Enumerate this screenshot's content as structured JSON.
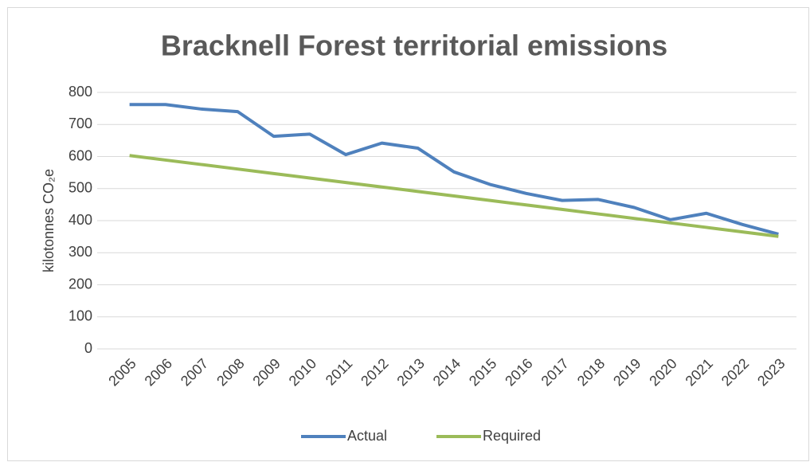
{
  "chart_data": {
    "type": "line",
    "title": "Bracknell Forest territorial emissions",
    "y_label": "kilotonnes CO₂e",
    "categories": [
      "2005",
      "2006",
      "2007",
      "2008",
      "2009",
      "2010",
      "2011",
      "2012",
      "2013",
      "2014",
      "2015",
      "2016",
      "2017",
      "2018",
      "2019",
      "2020",
      "2021",
      "2022",
      "2023"
    ],
    "series": [
      {
        "name": "Actual",
        "color": "#4f81bd",
        "values": [
          762,
          762,
          748,
          740,
          663,
          670,
          606,
          642,
          626,
          552,
          513,
          485,
          463,
          466,
          441,
          403,
          423,
          388,
          358
        ]
      },
      {
        "name": "Required",
        "color": "#9bbb59",
        "values": [
          603,
          589,
          575,
          561,
          547,
          533,
          519,
          505,
          491,
          477,
          463,
          449,
          435,
          421,
          407,
          393,
          379,
          365,
          351
        ]
      }
    ],
    "ylim": [
      0,
      800
    ],
    "yticks": [
      0,
      100,
      200,
      300,
      400,
      500,
      600,
      700,
      800
    ],
    "grid": true,
    "legend": "bottom"
  }
}
